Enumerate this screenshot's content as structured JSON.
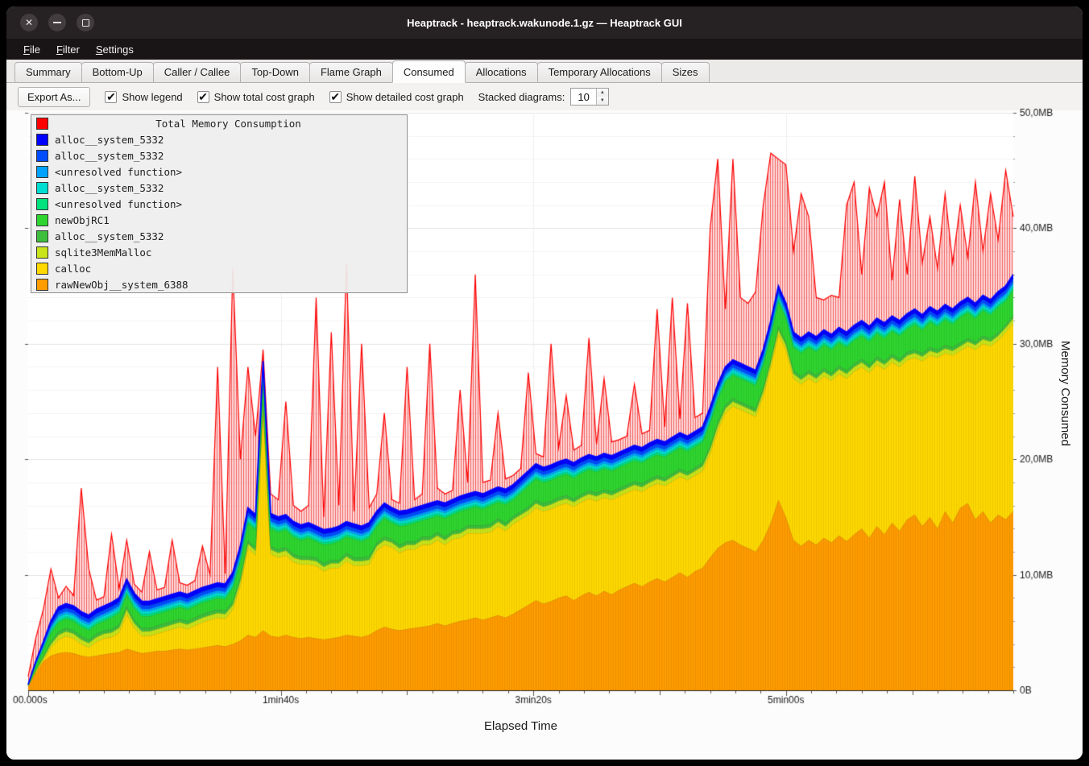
{
  "window": {
    "title": "Heaptrack - heaptrack.wakunode.1.gz — Heaptrack GUI",
    "controls": [
      "close",
      "minimize",
      "maximize"
    ]
  },
  "menu": {
    "items": [
      "File",
      "Filter",
      "Settings"
    ]
  },
  "tabs": {
    "items": [
      "Summary",
      "Bottom-Up",
      "Caller / Callee",
      "Top-Down",
      "Flame Graph",
      "Consumed",
      "Allocations",
      "Temporary Allocations",
      "Sizes"
    ],
    "active": "Consumed"
  },
  "toolbar": {
    "export_label": "Export As...",
    "checkboxes": [
      {
        "label": "Show legend",
        "checked": true
      },
      {
        "label": "Show total cost graph",
        "checked": true
      },
      {
        "label": "Show detailed cost graph",
        "checked": true
      }
    ],
    "stacked_label": "Stacked diagrams:",
    "stacked_value": "10"
  },
  "chart_data": {
    "type": "area",
    "stacked": true,
    "title": "Total Memory Consumption",
    "x_step_s": 3,
    "points": 131,
    "ramp_in_s": 12,
    "x_axis": {
      "label": "Elapsed Time",
      "max_s": 390,
      "ticks": [
        {
          "sec": 0,
          "label": "00.000s"
        },
        {
          "sec": 100,
          "label": "1min40s"
        },
        {
          "sec": 200,
          "label": "3min20s"
        },
        {
          "sec": 300,
          "label": "5min00s"
        }
      ]
    },
    "y_axis": {
      "label": "Memory Consumed",
      "max_mb": 50,
      "ticks": [
        {
          "mb": 0,
          "label": "0B"
        },
        {
          "mb": 10,
          "label": "10,0MB"
        },
        {
          "mb": 20,
          "label": "20,0MB"
        },
        {
          "mb": 30,
          "label": "30,0MB"
        },
        {
          "mb": 40,
          "label": "40,0MB"
        },
        {
          "mb": 50,
          "label": "50,0MB"
        }
      ]
    },
    "total": {
      "name": "Total Memory Consumption",
      "color": "#ff0000",
      "values": [
        1.2,
        4.5,
        7.0,
        10.5,
        8.0,
        9.0,
        8.2,
        17.5,
        10.5,
        7.8,
        8.1,
        13.5,
        8.8,
        13.0,
        9.2,
        8.5,
        12.0,
        8.7,
        8.9,
        13.0,
        9.3,
        9.1,
        9.5,
        12.5,
        10.0,
        28.0,
        10.1,
        36.5,
        20.0,
        28.0,
        22.0,
        29.5,
        17.0,
        16.5,
        25.0,
        16.0,
        15.5,
        16.0,
        34.0,
        15.0,
        31.0,
        16.0,
        37.0,
        15.5,
        30.0,
        15.8,
        17.0,
        24.0,
        16.5,
        16.2,
        28.0,
        16.5,
        17.0,
        30.0,
        17.5,
        17.0,
        17.3,
        26.0,
        18.0,
        36.0,
        18.0,
        18.2,
        24.0,
        18.3,
        18.6,
        19.2,
        27.5,
        20.5,
        20.2,
        30.0,
        21.0,
        25.5,
        20.8,
        21.2,
        30.5,
        21.3,
        27.0,
        21.5,
        21.7,
        22.0,
        26.5,
        22.2,
        22.5,
        33.0,
        22.8,
        34.0,
        23.5,
        33.5,
        23.6,
        24.0,
        40.0,
        46.0,
        33.0,
        46.0,
        34.0,
        33.5,
        34.5,
        42.0,
        46.5,
        46.0,
        45.5,
        38.0,
        43.0,
        41.0,
        34.0,
        33.8,
        34.2,
        34.0,
        42.0,
        44.0,
        36.0,
        43.5,
        41.0,
        44.0,
        35.5,
        42.5,
        36.0,
        44.5,
        37.0,
        41.0,
        36.5,
        43.0,
        37.0,
        42.0,
        37.5,
        44.0,
        38.0,
        43.0,
        39.0,
        45.0,
        41.0
      ]
    },
    "series": [
      {
        "name": "alloc__system_5332",
        "color": "#0000ff",
        "constant_mb": 0.35
      },
      {
        "name": "alloc__system_5332",
        "color": "#004cff",
        "constant_mb": 0.3
      },
      {
        "name": "<unresolved function>",
        "color": "#00a2ff",
        "constant_mb": 0.2
      },
      {
        "name": "alloc__system_5332",
        "color": "#00ddd2",
        "constant_mb": 0.25
      },
      {
        "name": "<unresolved function>",
        "color": "#00e27d",
        "constant_mb": 0.2
      },
      {
        "name": "newObjRC1",
        "color": "#2fd52f",
        "values": [
          0.1,
          0.4,
          0.6,
          0.8,
          0.8,
          0.8,
          0.8,
          0.8,
          0.8,
          0.8,
          0.8,
          1.0,
          1.0,
          1.0,
          1.0,
          1.0,
          1.0,
          1.0,
          1.0,
          1.0,
          1.0,
          1.0,
          1.0,
          1.0,
          1.0,
          1.0,
          1.0,
          1.2,
          1.4,
          1.5,
          1.5,
          2.0,
          1.5,
          1.5,
          1.5,
          1.5,
          1.4,
          1.6,
          1.4,
          1.6,
          1.4,
          1.6,
          1.4,
          1.6,
          1.4,
          1.6,
          1.4,
          1.6,
          1.4,
          1.6,
          1.4,
          1.6,
          1.4,
          1.6,
          1.4,
          1.6,
          1.4,
          1.6,
          1.4,
          1.6,
          1.4,
          1.6,
          1.4,
          1.6,
          1.4,
          1.6,
          1.8,
          1.8,
          1.8,
          1.8,
          1.8,
          1.8,
          1.8,
          1.8,
          1.8,
          1.8,
          1.8,
          1.8,
          1.8,
          1.8,
          1.8,
          1.8,
          1.8,
          1.8,
          1.8,
          1.8,
          1.8,
          1.8,
          1.8,
          1.8,
          2.0,
          2.0,
          2.0,
          2.0,
          2.0,
          2.0,
          2.0,
          2.0,
          2.0,
          2.2,
          2.0,
          2.0,
          2.0,
          2.0,
          2.0,
          2.0,
          2.0,
          2.0,
          2.0,
          2.0,
          2.0,
          2.0,
          2.0,
          2.0,
          2.0,
          2.0,
          2.0,
          2.2,
          2.0,
          2.2,
          2.0,
          2.2,
          2.0,
          2.2,
          2.2,
          2.0,
          2.2,
          2.0,
          2.2,
          2.0,
          2.2
        ]
      },
      {
        "name": "alloc__system_5332",
        "color": "#3dbf3d",
        "constant_mb": 0.3
      },
      {
        "name": "sqlite3MemMalloc",
        "color": "#c9e41a",
        "constant_mb": 0.4
      },
      {
        "name": "calloc",
        "color": "#ffd800",
        "values": [
          0.1,
          0.1,
          0.1,
          0.7,
          1.2,
          1.4,
          1.3,
          1.0,
          0.8,
          1.2,
          1.4,
          1.4,
          1.7,
          3.0,
          2.0,
          1.5,
          1.4,
          1.5,
          1.7,
          1.8,
          1.9,
          1.8,
          2.0,
          2.2,
          2.3,
          2.4,
          2.4,
          3.0,
          4.8,
          7.5,
          7.1,
          19.3,
          7.1,
          6.9,
          6.9,
          6.5,
          6.4,
          6.3,
          6.3,
          5.9,
          6.1,
          6.0,
          6.4,
          6.1,
          6.2,
          6.1,
          6.9,
          7.1,
          7.1,
          6.7,
          6.9,
          6.8,
          7.1,
          7.0,
          7.2,
          7.0,
          7.3,
          7.2,
          7.5,
          7.3,
          7.5,
          7.4,
          7.7,
          7.5,
          7.8,
          7.8,
          7.8,
          8.0,
          8.0,
          8.0,
          8.0,
          8.0,
          8.1,
          8.1,
          8.1,
          8.2,
          8.1,
          8.2,
          8.1,
          8.1,
          8.1,
          8.2,
          8.2,
          8.2,
          8.3,
          8.3,
          8.3,
          8.4,
          8.3,
          8.4,
          9.0,
          10.2,
          11.2,
          11.6,
          11.7,
          11.7,
          11.7,
          12.5,
          13.5,
          14.3,
          14.5,
          14.0,
          14.0,
          14.0,
          14.0,
          14.0,
          14.0,
          14.0,
          14.1,
          14.1,
          14.0,
          14.3,
          14.0,
          14.3,
          13.9,
          14.2,
          13.8,
          13.6,
          14.3,
          14.0,
          14.8,
          13.7,
          14.5,
          13.6,
          13.6,
          14.7,
          14.5,
          15.3,
          15.1,
          16.2,
          16.3
        ]
      },
      {
        "name": "rawNewObj__system_6388",
        "color": "#ff9c00",
        "values": [
          0.3,
          1.5,
          2.5,
          3.0,
          3.2,
          3.3,
          3.2,
          3.0,
          2.9,
          3.0,
          3.1,
          3.2,
          3.3,
          3.6,
          3.4,
          3.2,
          3.3,
          3.4,
          3.4,
          3.5,
          3.6,
          3.5,
          3.6,
          3.7,
          3.8,
          3.9,
          3.8,
          4.0,
          4.3,
          4.8,
          4.6,
          5.2,
          4.7,
          4.6,
          4.8,
          4.6,
          4.5,
          4.6,
          4.5,
          4.4,
          4.5,
          4.6,
          4.8,
          4.7,
          4.6,
          4.8,
          5.2,
          5.5,
          5.3,
          5.2,
          5.3,
          5.4,
          5.5,
          5.6,
          5.8,
          5.6,
          5.8,
          6.0,
          6.1,
          6.3,
          6.1,
          6.3,
          6.5,
          6.3,
          6.6,
          7.0,
          7.4,
          7.8,
          7.5,
          7.7,
          8.0,
          8.2,
          7.8,
          8.2,
          8.5,
          8.2,
          8.6,
          8.3,
          8.7,
          9.0,
          9.3,
          9.0,
          9.4,
          9.7,
          9.4,
          9.8,
          10.2,
          9.8,
          10.3,
          10.6,
          11.5,
          12.3,
          12.8,
          13.0,
          12.6,
          12.3,
          12.0,
          13.0,
          14.5,
          16.5,
          15.0,
          13.0,
          12.5,
          13.0,
          12.6,
          13.2,
          12.8,
          13.4,
          12.9,
          13.5,
          14.0,
          13.2,
          14.2,
          13.5,
          14.5,
          13.8,
          14.8,
          15.2,
          14.2,
          15.0,
          14.0,
          15.5,
          14.5,
          15.8,
          16.2,
          14.8,
          15.5,
          14.5,
          15.2,
          14.8,
          15.5
        ]
      }
    ]
  }
}
